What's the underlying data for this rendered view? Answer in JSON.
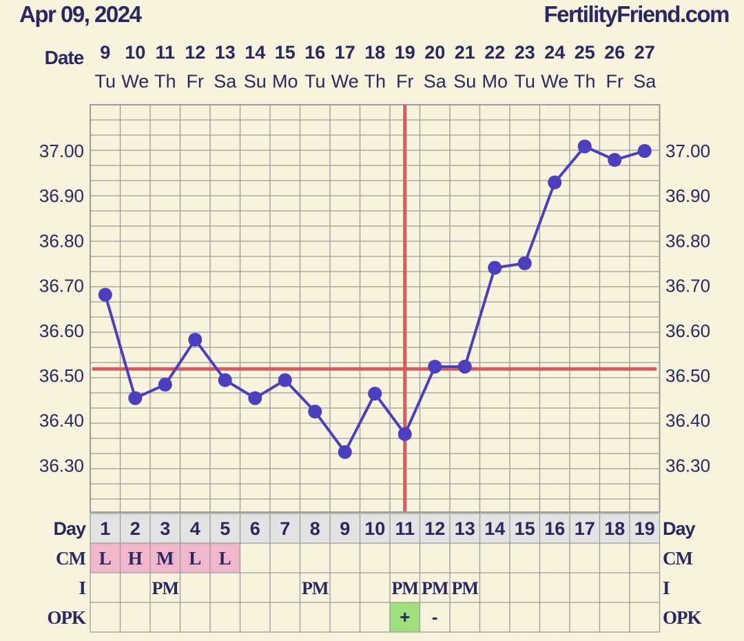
{
  "header": {
    "date": "Apr 09, 2024",
    "site": "FertilityFriend.com"
  },
  "labels": {
    "date_row": "Date",
    "day_row": "Day",
    "cm_row": "CM",
    "i_row": "I",
    "opk_row": "OPK"
  },
  "colors": {
    "background": "#f7f3dc",
    "grid": "#9a9a9a",
    "line": "#4b3fc0",
    "point": "#4b3fc0",
    "coverline": "#d95a5a",
    "ovulation": "#d95a5a",
    "cm_fill": "#f0b6cc",
    "opk_positive_fill": "#9ee07c",
    "day_row_fill": "#e3e3e3",
    "text": "#2a2860"
  },
  "chart_data": {
    "type": "line",
    "title": "",
    "xlabel": "Day",
    "ylabel": "",
    "categories": [
      "1",
      "2",
      "3",
      "4",
      "5",
      "6",
      "7",
      "8",
      "9",
      "10",
      "11",
      "12",
      "13",
      "14",
      "15",
      "16",
      "17",
      "18",
      "19"
    ],
    "dates": [
      "9",
      "10",
      "11",
      "12",
      "13",
      "14",
      "15",
      "16",
      "17",
      "18",
      "19",
      "20",
      "21",
      "22",
      "23",
      "24",
      "25",
      "26",
      "27"
    ],
    "weekdays": [
      "Tu",
      "We",
      "Th",
      "Fr",
      "Sa",
      "Su",
      "Mo",
      "Tu",
      "We",
      "Th",
      "Fr",
      "Sa",
      "Su",
      "Mo",
      "Tu",
      "We",
      "Th",
      "Fr",
      "Sa"
    ],
    "series": [
      {
        "values": [
          36.68,
          36.45,
          36.48,
          36.58,
          36.49,
          36.45,
          36.49,
          36.42,
          36.33,
          36.46,
          36.37,
          36.52,
          36.52,
          36.74,
          36.75,
          36.93,
          37.01,
          36.98,
          37.0
        ]
      }
    ],
    "ylim": [
      36.2,
      37.1
    ],
    "y_ticks": [
      "37.00",
      "36.90",
      "36.80",
      "36.70",
      "36.60",
      "36.50",
      "36.40",
      "36.30"
    ],
    "coverline": 36.515,
    "ovulation_day": 11,
    "grid": true,
    "cm": [
      "L",
      "H",
      "M",
      "L",
      "L",
      "",
      "",
      "",
      "",
      "",
      "",
      "",
      "",
      "",
      "",
      "",
      "",
      "",
      ""
    ],
    "intercourse": [
      "",
      "",
      "PM",
      "",
      "",
      "",
      "",
      "PM",
      "",
      "",
      "PM",
      "PM",
      "PM",
      "",
      "",
      "",
      "",
      "",
      ""
    ],
    "opk": [
      "",
      "",
      "",
      "",
      "",
      "",
      "",
      "",
      "",
      "",
      "+",
      "-",
      "",
      "",
      "",
      "",
      "",
      "",
      ""
    ]
  }
}
